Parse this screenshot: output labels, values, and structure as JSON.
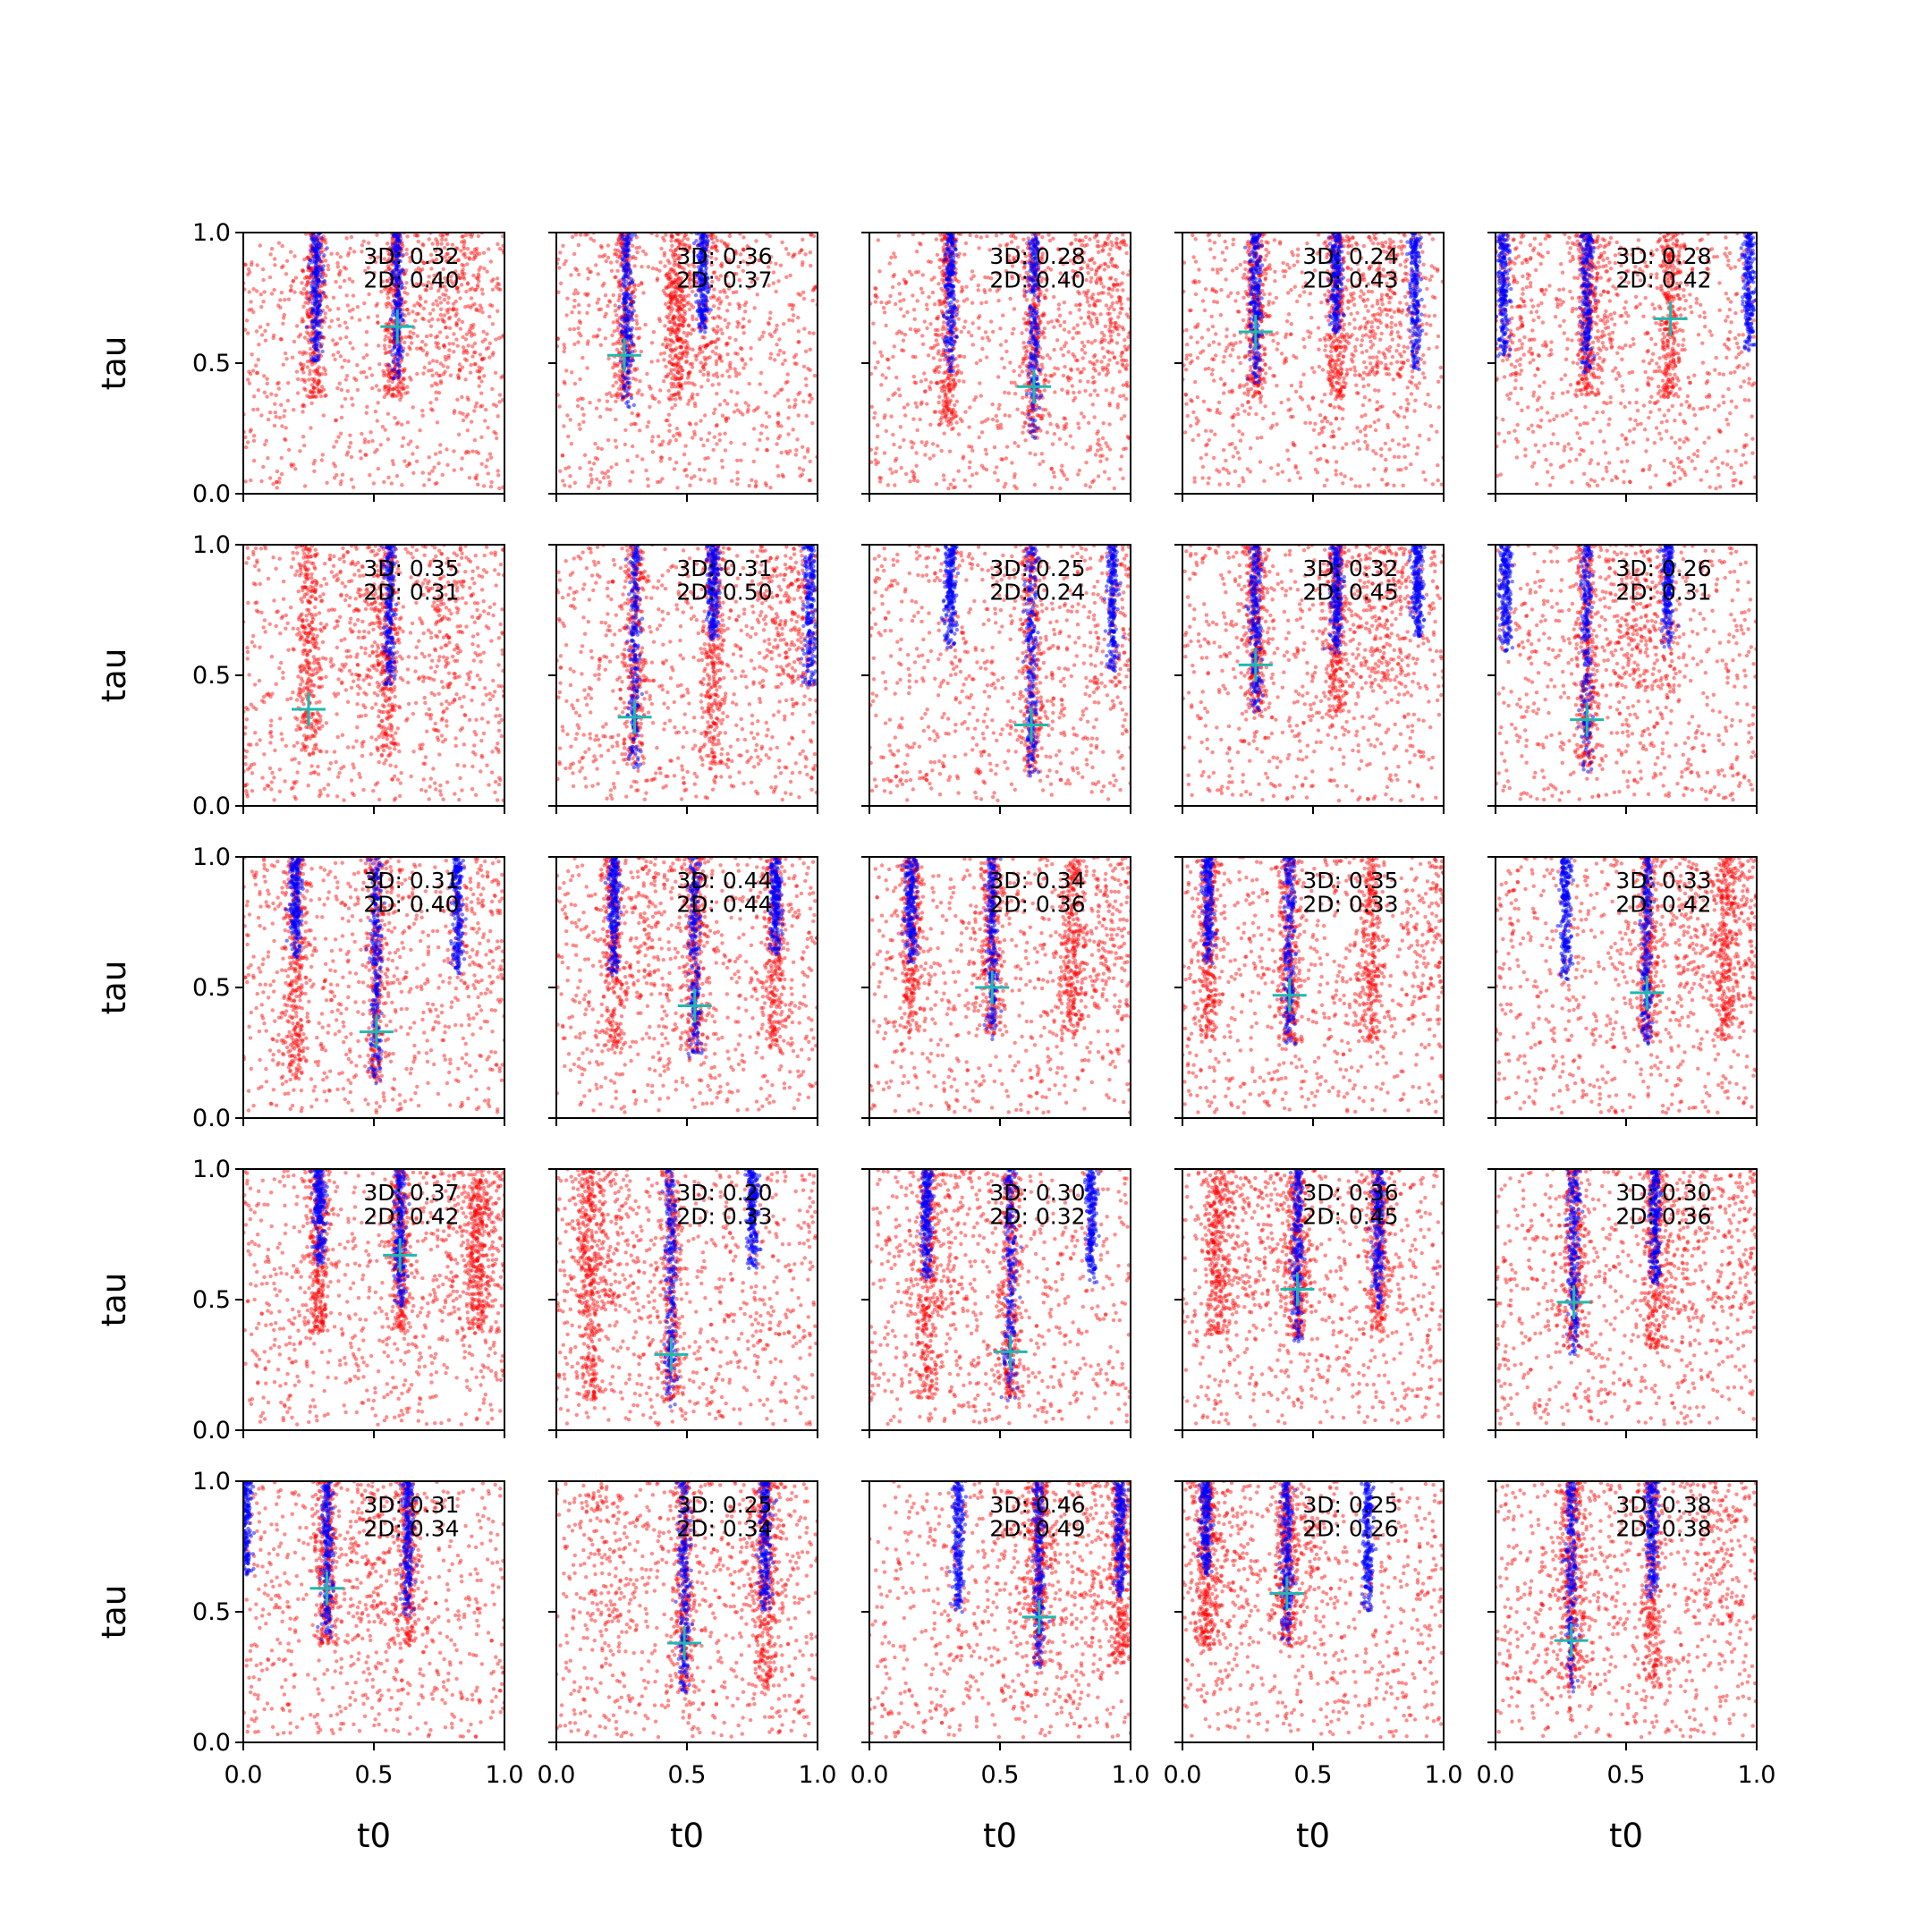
{
  "chart_data": {
    "type": "scatter",
    "grid": false,
    "rows": 5,
    "cols": 5,
    "xlabel": "t0",
    "ylabel": "tau",
    "xlim": [
      0.0,
      1.0
    ],
    "ylim": [
      0.0,
      1.0
    ],
    "xticks": [
      "0.0",
      "0.5",
      "1.0"
    ],
    "yticks": [
      "0.0",
      "0.5",
      "1.0"
    ],
    "colors": {
      "sample_a": "#ff0000",
      "sample_b": "#0000ff",
      "marker": "#1fb8b0"
    },
    "panels": [
      {
        "l3d": "3D: 0.32",
        "l2d": "2D: 0.40",
        "marker": [
          0.59,
          0.64
        ],
        "red_stripes": [
          0.27,
          0.58
        ],
        "blue_stripes": [
          0.28,
          0.59
        ],
        "red_top": [
          0.75,
          0.88
        ]
      },
      {
        "l3d": "3D: 0.36",
        "l2d": "2D: 0.37",
        "marker": [
          0.26,
          0.53
        ],
        "red_stripes": [
          0.26,
          0.46
        ],
        "blue_stripes": [
          0.27,
          0.56
        ],
        "red_top": [
          0.52,
          0.62
        ]
      },
      {
        "l3d": "3D: 0.28",
        "l2d": "2D: 0.40",
        "marker": [
          0.63,
          0.41
        ],
        "red_stripes": [
          0.3,
          0.63
        ],
        "blue_stripes": [
          0.31,
          0.63
        ],
        "red_top": [
          0.85,
          0.95
        ]
      },
      {
        "l3d": "3D: 0.24",
        "l2d": "2D: 0.43",
        "marker": [
          0.28,
          0.62
        ],
        "red_stripes": [
          0.28,
          0.59
        ],
        "blue_stripes": [
          0.28,
          0.59,
          0.89
        ],
        "red_top": [
          0.72,
          0.82
        ]
      },
      {
        "l3d": "3D: 0.28",
        "l2d": "2D: 0.42",
        "marker": [
          0.67,
          0.67
        ],
        "red_stripes": [
          0.35,
          0.67
        ],
        "blue_stripes": [
          0.03,
          0.35,
          0.97
        ],
        "red_top": [
          0.05,
          0.4
        ]
      },
      {
        "l3d": "3D: 0.35",
        "l2d": "2D: 0.31",
        "marker": [
          0.25,
          0.37
        ],
        "red_stripes": [
          0.25,
          0.55
        ],
        "blue_stripes": [
          0.56
        ],
        "red_top": [
          0.45,
          0.78
        ]
      },
      {
        "l3d": "3D: 0.31",
        "l2d": "2D: 0.50",
        "marker": [
          0.3,
          0.34
        ],
        "red_stripes": [
          0.3,
          0.6
        ],
        "blue_stripes": [
          0.3,
          0.6,
          0.97
        ],
        "red_top": [
          0.85,
          0.95
        ]
      },
      {
        "l3d": "3D: 0.25",
        "l2d": "2D: 0.24",
        "marker": [
          0.62,
          0.31
        ],
        "red_stripes": [
          0.62
        ],
        "blue_stripes": [
          0.31,
          0.62,
          0.93
        ],
        "red_top": [
          0.95
        ]
      },
      {
        "l3d": "3D: 0.32",
        "l2d": "2D: 0.45",
        "marker": [
          0.28,
          0.54
        ],
        "red_stripes": [
          0.28,
          0.59
        ],
        "blue_stripes": [
          0.28,
          0.59,
          0.9
        ],
        "red_top": [
          0.72,
          0.82
        ]
      },
      {
        "l3d": "3D: 0.26",
        "l2d": "2D: 0.31",
        "marker": [
          0.35,
          0.33
        ],
        "red_stripes": [
          0.35
        ],
        "blue_stripes": [
          0.04,
          0.35,
          0.66
        ],
        "red_top": [
          0.5,
          0.6
        ]
      },
      {
        "l3d": "3D: 0.31",
        "l2d": "2D: 0.40",
        "marker": [
          0.51,
          0.33
        ],
        "red_stripes": [
          0.2,
          0.51
        ],
        "blue_stripes": [
          0.2,
          0.51,
          0.82
        ],
        "red_top": [
          0.9
        ]
      },
      {
        "l3d": "3D: 0.44",
        "l2d": "2D: 0.44",
        "marker": [
          0.53,
          0.43
        ],
        "red_stripes": [
          0.22,
          0.53,
          0.84
        ],
        "blue_stripes": [
          0.22,
          0.53,
          0.84
        ],
        "red_top": [
          0.35
        ]
      },
      {
        "l3d": "3D: 0.34",
        "l2d": "2D: 0.36",
        "marker": [
          0.47,
          0.5
        ],
        "red_stripes": [
          0.16,
          0.47,
          0.78
        ],
        "blue_stripes": [
          0.16,
          0.47
        ],
        "red_top": [
          0.9
        ]
      },
      {
        "l3d": "3D: 0.35",
        "l2d": "2D: 0.33",
        "marker": [
          0.41,
          0.47
        ],
        "red_stripes": [
          0.1,
          0.41,
          0.72
        ],
        "blue_stripes": [
          0.1,
          0.41
        ],
        "red_top": [
          0.95
        ]
      },
      {
        "l3d": "3D: 0.33",
        "l2d": "2D: 0.42",
        "marker": [
          0.58,
          0.48
        ],
        "red_stripes": [
          0.58,
          0.88
        ],
        "blue_stripes": [
          0.27,
          0.58
        ],
        "red_top": [
          0.75,
          0.95
        ]
      },
      {
        "l3d": "3D: 0.37",
        "l2d": "2D: 0.42",
        "marker": [
          0.6,
          0.67
        ],
        "red_stripes": [
          0.29,
          0.6,
          0.9
        ],
        "blue_stripes": [
          0.29,
          0.6
        ],
        "red_top": [
          0.8,
          0.95
        ]
      },
      {
        "l3d": "3D: 0.20",
        "l2d": "2D: 0.33",
        "marker": [
          0.44,
          0.29
        ],
        "red_stripes": [
          0.13,
          0.44
        ],
        "blue_stripes": [
          0.44,
          0.75
        ],
        "red_top": [
          0.1,
          0.2
        ]
      },
      {
        "l3d": "3D: 0.30",
        "l2d": "2D: 0.32",
        "marker": [
          0.54,
          0.3
        ],
        "red_stripes": [
          0.22,
          0.54
        ],
        "blue_stripes": [
          0.22,
          0.54,
          0.85
        ],
        "red_top": [
          0.3
        ]
      },
      {
        "l3d": "3D: 0.36",
        "l2d": "2D: 0.45",
        "marker": [
          0.44,
          0.54
        ],
        "red_stripes": [
          0.13,
          0.44,
          0.75
        ],
        "blue_stripes": [
          0.44,
          0.75
        ],
        "red_top": [
          0.2,
          0.4
        ]
      },
      {
        "l3d": "3D: 0.30",
        "l2d": "2D: 0.36",
        "marker": [
          0.3,
          0.49
        ],
        "red_stripes": [
          0.3,
          0.61
        ],
        "blue_stripes": [
          0.3,
          0.61
        ],
        "red_top": [
          0.7,
          0.95
        ]
      },
      {
        "l3d": "3D: 0.31",
        "l2d": "2D: 0.34",
        "marker": [
          0.32,
          0.59
        ],
        "red_stripes": [
          0.32,
          0.63
        ],
        "blue_stripes": [
          0.01,
          0.32,
          0.63
        ],
        "red_top": [
          0.5
        ]
      },
      {
        "l3d": "3D: 0.25",
        "l2d": "2D: 0.34",
        "marker": [
          0.49,
          0.38
        ],
        "red_stripes": [
          0.49,
          0.8
        ],
        "blue_stripes": [
          0.49,
          0.8
        ],
        "red_top": [
          0.2,
          0.8
        ]
      },
      {
        "l3d": "3D: 0.46",
        "l2d": "2D: 0.49",
        "marker": [
          0.65,
          0.48
        ],
        "red_stripes": [
          0.65,
          0.96
        ],
        "blue_stripes": [
          0.34,
          0.65,
          0.96
        ],
        "red_top": [
          0.65,
          0.85
        ]
      },
      {
        "l3d": "3D: 0.25",
        "l2d": "2D: 0.26",
        "marker": [
          0.4,
          0.57
        ],
        "red_stripes": [
          0.09,
          0.4
        ],
        "blue_stripes": [
          0.09,
          0.4,
          0.71
        ],
        "red_top": [
          0.15,
          0.45
        ]
      },
      {
        "l3d": "3D: 0.38",
        "l2d": "2D: 0.38",
        "marker": [
          0.29,
          0.39
        ],
        "red_stripes": [
          0.29,
          0.6
        ],
        "blue_stripes": [
          0.29,
          0.6
        ],
        "red_top": [
          0.3,
          0.85
        ]
      }
    ]
  }
}
